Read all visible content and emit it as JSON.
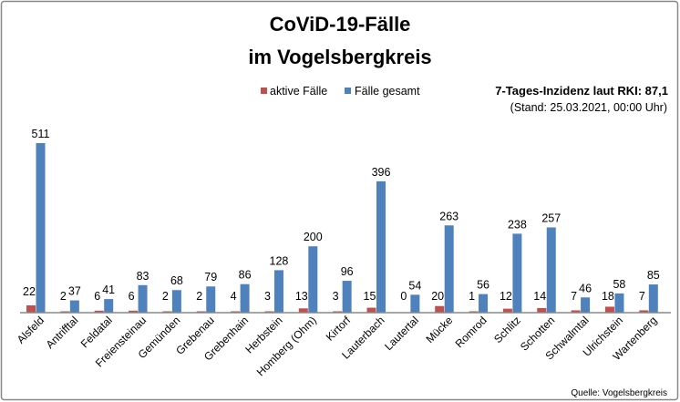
{
  "chart_data": {
    "type": "bar",
    "title": "CoViD-19-Fälle",
    "subtitle": "im Vogelsbergkreis",
    "annotation_main": "7-Tages-Inzidenz laut RKI: 87,1",
    "annotation_sub": "(Stand: 25.03.2021, 00:00 Uhr)",
    "source": "Quelle: Vogelsbergkreis",
    "legend_position": "top",
    "grid": false,
    "ylim": [
      0,
      511
    ],
    "categories": [
      "Alsfeld",
      "Antrifftal",
      "Feldatal",
      "Freiensteinau",
      "Gemünden",
      "Grebenau",
      "Grebenhain",
      "Herbstein",
      "Homberg (Ohm)",
      "Kirtorf",
      "Lauterbach",
      "Lautertal",
      "Mücke",
      "Romrod",
      "Schlitz",
      "Schotten",
      "Schwalmtal",
      "Ulrichstein",
      "Wartenberg"
    ],
    "series": [
      {
        "name": "aktive Fälle",
        "color": "#c0504d",
        "values": [
          22,
          2,
          6,
          6,
          2,
          2,
          4,
          3,
          13,
          3,
          15,
          0,
          20,
          1,
          12,
          14,
          7,
          18,
          7
        ]
      },
      {
        "name": "Fälle gesamt",
        "color": "#4f81bd",
        "values": [
          511,
          37,
          41,
          83,
          68,
          79,
          86,
          128,
          200,
          96,
          396,
          54,
          263,
          56,
          238,
          257,
          46,
          58,
          85
        ]
      }
    ]
  }
}
